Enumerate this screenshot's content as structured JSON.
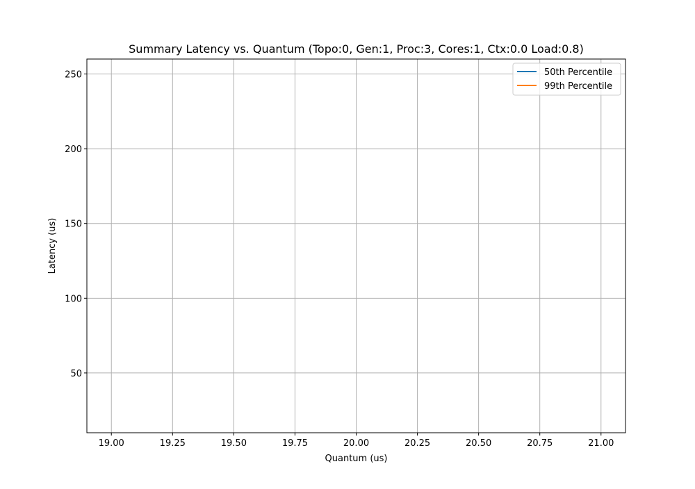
{
  "chart_data": {
    "type": "line",
    "title": "Summary Latency vs. Quantum (Topo:0, Gen:1, Proc:3, Cores:1, Ctx:0.0 Load:0.8)",
    "xlabel": "Quantum (us)",
    "ylabel": "Latency (us)",
    "xlim": [
      18.9,
      21.1
    ],
    "ylim": [
      10,
      260
    ],
    "xticks": [
      19.0,
      19.25,
      19.5,
      19.75,
      20.0,
      20.25,
      20.5,
      20.75,
      21.0
    ],
    "xtick_labels": [
      "19.00",
      "19.25",
      "19.50",
      "19.75",
      "20.00",
      "20.25",
      "20.50",
      "20.75",
      "21.00"
    ],
    "yticks": [
      50,
      100,
      150,
      200,
      250
    ],
    "ytick_labels": [
      "50",
      "100",
      "150",
      "200",
      "250"
    ],
    "grid": true,
    "legend_position": "top-right",
    "series": [
      {
        "name": "50th Percentile",
        "color": "#1f77b4",
        "x": [],
        "y": []
      },
      {
        "name": "99th Percentile",
        "color": "#ff7f0e",
        "x": [],
        "y": []
      }
    ]
  }
}
